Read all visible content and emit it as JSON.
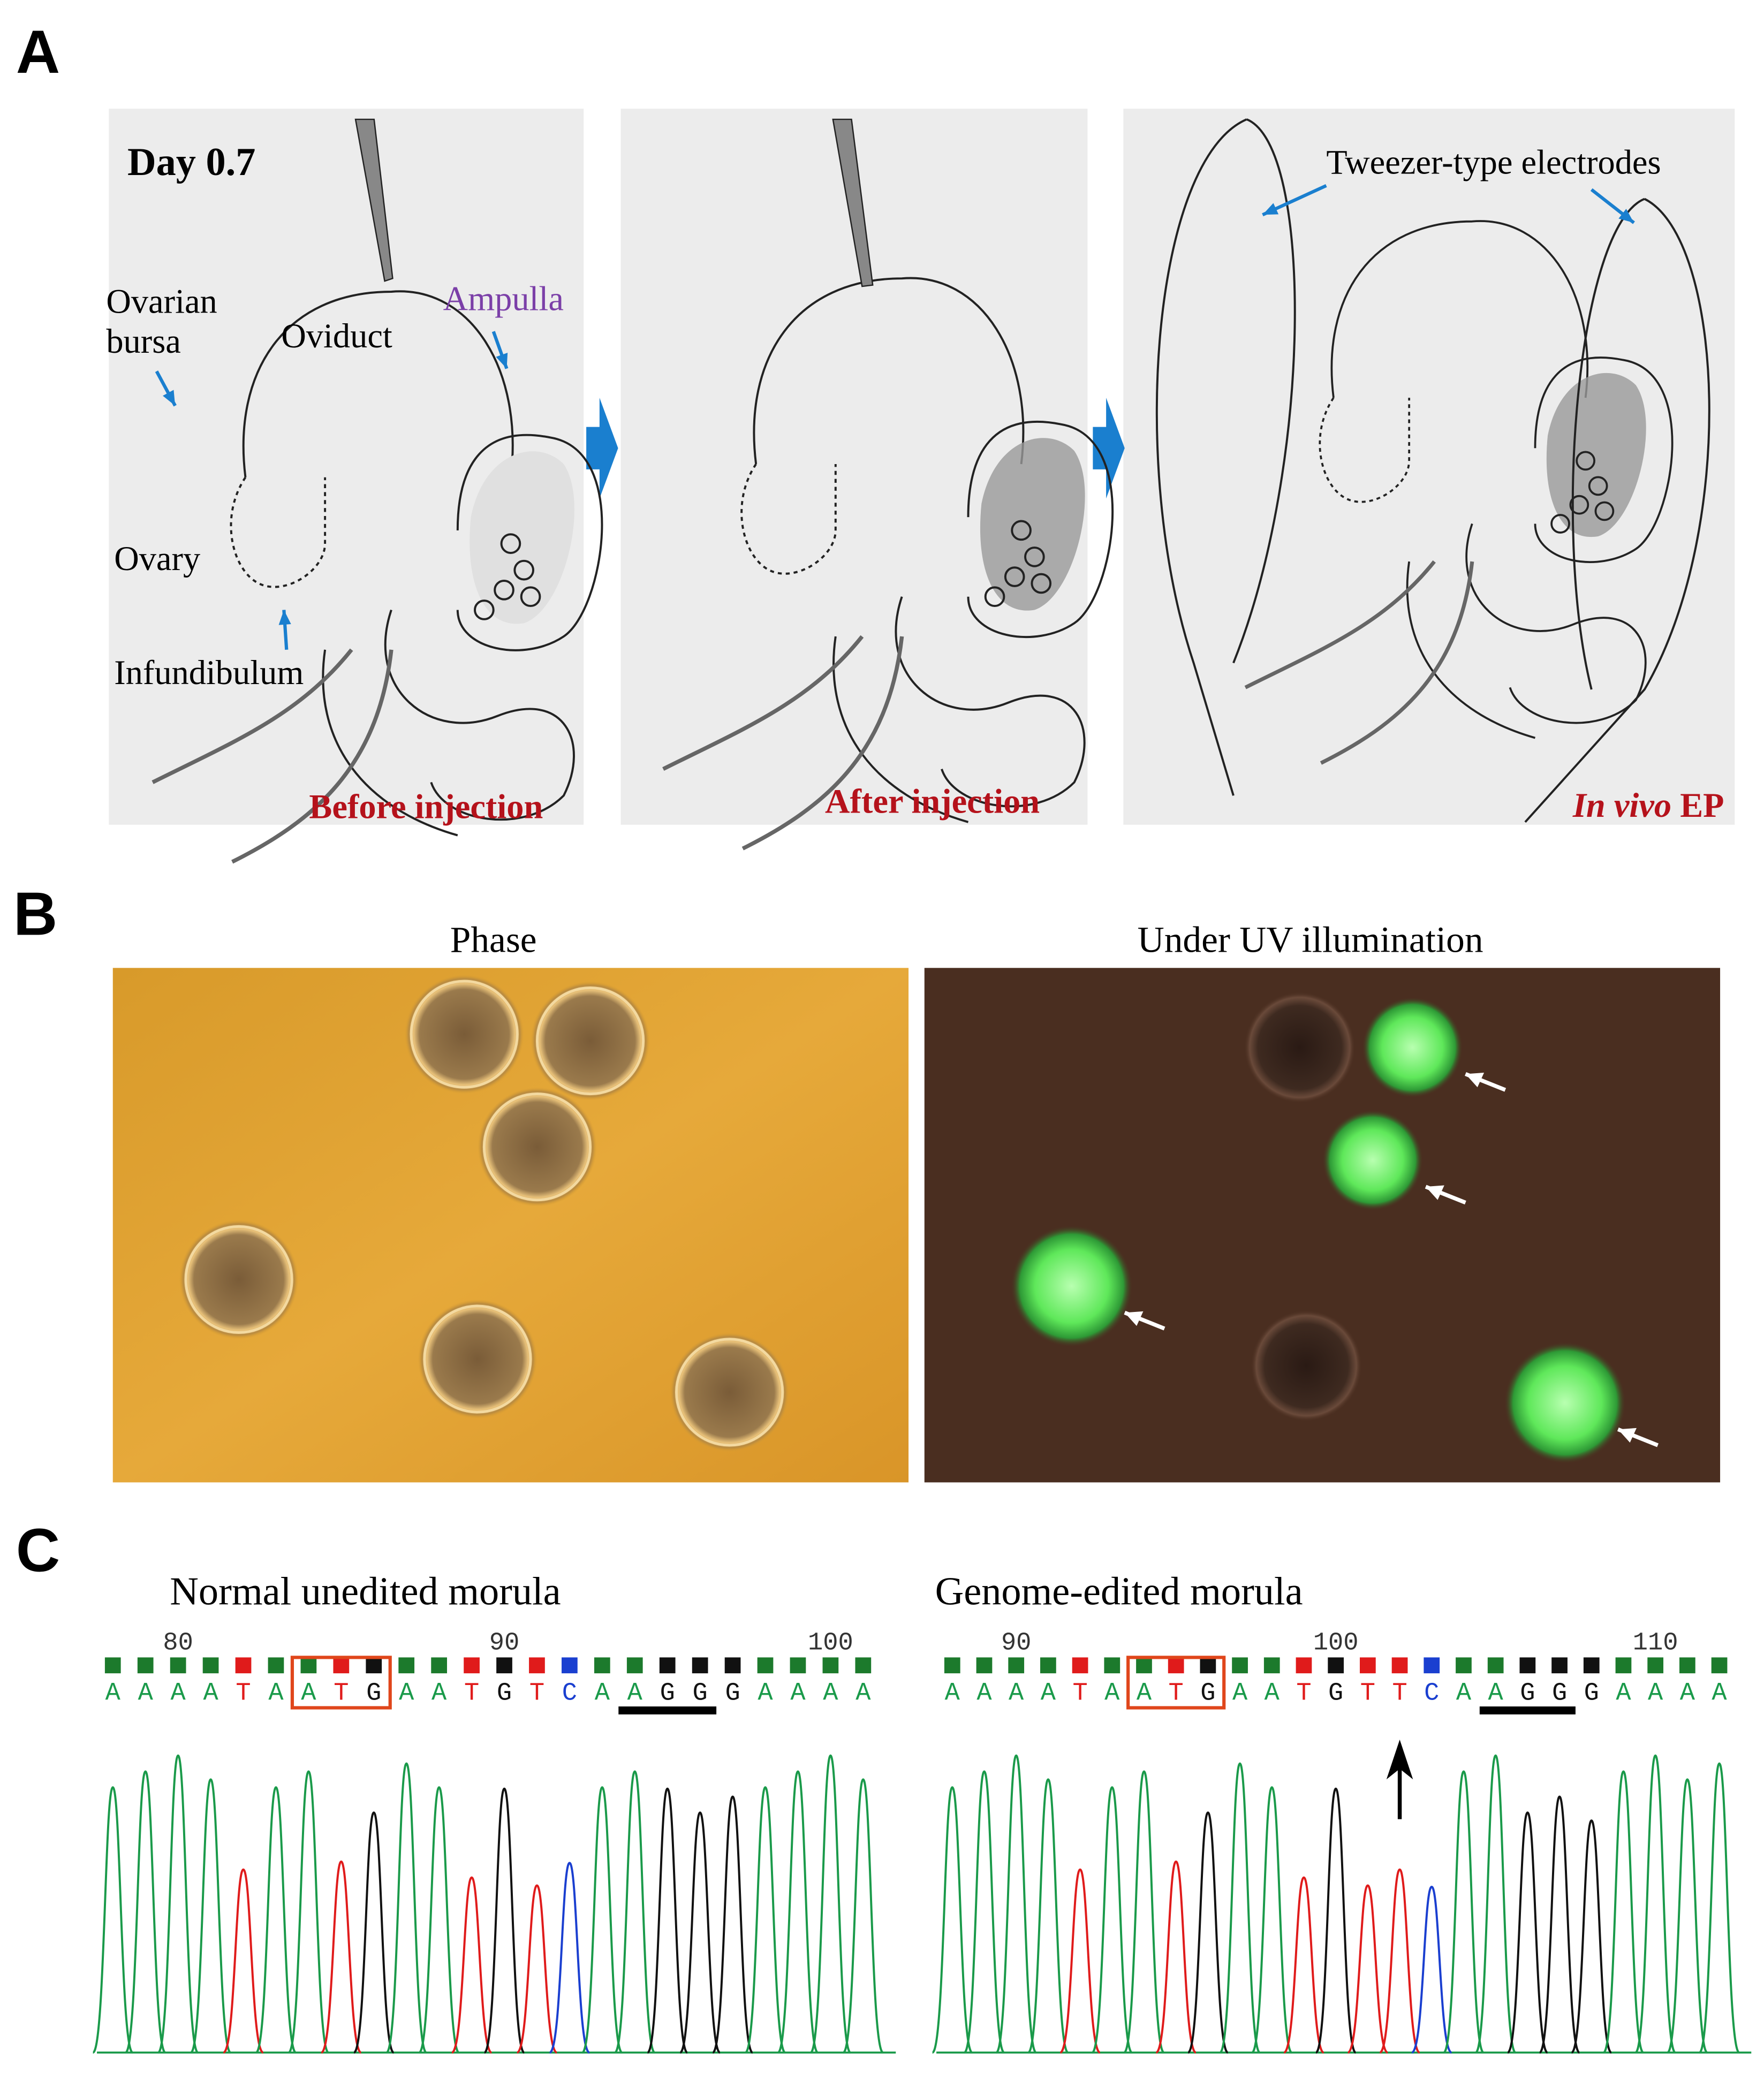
{
  "panel_a": {
    "label": "A",
    "day": "Day 0.7",
    "anatomy": {
      "ovarian_bursa": [
        "Ovarian",
        "bursa"
      ],
      "oviduct": "Oviduct",
      "ampulla": "Ampulla",
      "ovary": "Ovary",
      "infundibulum": "Infundibulum"
    },
    "before": "Before injection",
    "after": "After injection",
    "electrodes": "Tweezer-type electrodes",
    "ep_italic": "In vivo",
    "ep_rest": "EP"
  },
  "panel_b": {
    "label": "B",
    "phase": "Phase",
    "uv": "Under UV illumination"
  },
  "panel_c": {
    "label": "C",
    "left": {
      "title": "Normal unedited morula",
      "positions": [
        80,
        90,
        100
      ],
      "sequence": [
        "A",
        "A",
        "A",
        "A",
        "T",
        "A",
        "A",
        "T",
        "G",
        "A",
        "A",
        "T",
        "G",
        "T",
        "C",
        "A",
        "A",
        "G",
        "G",
        "G",
        "A",
        "A",
        "A",
        "A"
      ]
    },
    "right": {
      "title": "Genome-edited morula",
      "positions": [
        90,
        100,
        110
      ],
      "sequence": [
        "A",
        "A",
        "A",
        "A",
        "T",
        "A",
        "A",
        "T",
        "G",
        "A",
        "A",
        "T",
        "G",
        "T",
        "T",
        "C",
        "A",
        "A",
        "G",
        "G",
        "G",
        "A",
        "A",
        "A",
        "A"
      ]
    }
  }
}
